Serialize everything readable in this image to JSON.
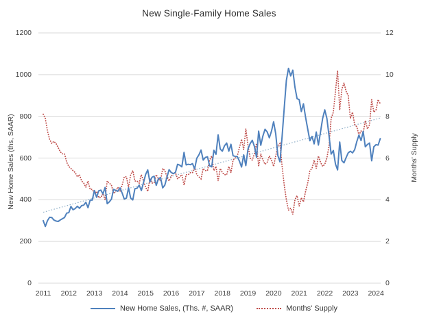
{
  "chart_data": {
    "type": "line",
    "title": "New Single-Family Home Sales",
    "ylabel_left": "New Home Sales (ths, SAAR)",
    "ylabel_right": "Months' Supply",
    "ylim_left": [
      0,
      1200
    ],
    "ylim_right": [
      0,
      12
    ],
    "left_axis_ticks": [
      "0",
      "200",
      "400",
      "600",
      "800",
      "1000",
      "1200"
    ],
    "right_axis_ticks": [
      "0",
      "2",
      "4",
      "6",
      "8",
      "10",
      "12"
    ],
    "x_ticks": [
      "2011",
      "2012",
      "2013",
      "2014",
      "2015",
      "2016",
      "2017",
      "2018",
      "2019",
      "2020",
      "2021",
      "2022",
      "2023",
      "2024"
    ],
    "x_frequency": "monthly",
    "x_start": "2011-01",
    "x_end": "2024-03",
    "grid": "horizontal",
    "legend_position": "bottom",
    "colors": {
      "gridline": "#d9d9d9",
      "trend": "#8fafc8",
      "text": "#3c3c3c"
    },
    "series": [
      {
        "name": "New Home Sales",
        "legend_label": "New Home Sales, (Ths. #, SAAR)",
        "axis": "left",
        "style": "solid",
        "color": "#4f81bd",
        "values": [
          300,
          272,
          300,
          316,
          315,
          303,
          298,
          296,
          303,
          309,
          315,
          336,
          338,
          368,
          352,
          358,
          369,
          359,
          372,
          374,
          388,
          362,
          398,
          398,
          444,
          412,
          443,
          446,
          428,
          459,
          381,
          390,
          403,
          450,
          445,
          441,
          457,
          432,
          403,
          408,
          457,
          408,
          399,
          453,
          455,
          470,
          444,
          482,
          521,
          543,
          485,
          508,
          513,
          469,
          500,
          507,
          457,
          470,
          508,
          544,
          531,
          525,
          531,
          570,
          566,
          558,
          627,
          567,
          570,
          568,
          573,
          548,
          599,
          615,
          638,
          590,
          603,
          606,
          563,
          558,
          637,
          618,
          711,
          643,
          633,
          659,
          672,
          633,
          666,
          611,
          608,
          607,
          585,
          557,
          615,
          564,
          644,
          669,
          685,
          656,
          604,
          729,
          661,
          706,
          738,
          725,
          697,
          729,
          774,
          716,
          612,
          582,
          704,
          840,
          972,
          1030,
          994,
          1021,
          940,
          885,
          880,
          823,
          860,
          796,
          740,
          683,
          704,
          668,
          725,
          662,
          725,
          790,
          831,
          790,
          707,
          619,
          636,
          571,
          543,
          677,
          588,
          577,
          602,
          625,
          633,
          625,
          640,
          679,
          710,
          684,
          728,
          654,
          665,
          672,
          587,
          654,
          664,
          662,
          693
        ]
      },
      {
        "name": "Months' Supply",
        "legend_label": "Months' Supply",
        "axis": "right",
        "style": "dotted",
        "color": "#c0504d",
        "values": [
          8.1,
          7.9,
          7.3,
          6.9,
          6.7,
          6.8,
          6.7,
          6.5,
          6.3,
          6.2,
          6.2,
          5.8,
          5.6,
          5.5,
          5.4,
          5.3,
          5.1,
          5.2,
          4.9,
          4.8,
          4.6,
          4.9,
          4.5,
          4.5,
          4.3,
          4.4,
          4.1,
          4.1,
          4.3,
          4.0,
          4.9,
          4.8,
          4.7,
          4.3,
          4.4,
          4.6,
          4.4,
          4.7,
          5.1,
          5.1,
          4.6,
          5.2,
          5.4,
          4.9,
          4.9,
          4.8,
          5.2,
          4.9,
          4.6,
          4.4,
          5.0,
          4.8,
          4.8,
          5.2,
          5.0,
          4.9,
          5.5,
          5.4,
          5.1,
          4.9,
          5.1,
          5.3,
          5.3,
          5.0,
          5.1,
          5.2,
          4.7,
          5.2,
          5.2,
          5.3,
          5.3,
          5.6,
          5.2,
          5.1,
          5.0,
          5.5,
          5.4,
          5.4,
          5.9,
          6.1,
          5.4,
          5.6,
          4.9,
          5.5,
          5.3,
          5.2,
          5.2,
          5.6,
          5.3,
          5.9,
          6.0,
          6.1,
          6.5,
          6.9,
          6.4,
          7.4,
          6.6,
          6.0,
          5.9,
          6.2,
          6.7,
          5.6,
          6.2,
          5.9,
          5.7,
          5.8,
          6.1,
          5.9,
          5.6,
          6.1,
          6.6,
          6.7,
          5.6,
          4.7,
          4.0,
          3.5,
          3.6,
          3.3,
          4.0,
          4.2,
          3.7,
          4.1,
          3.9,
          4.4,
          4.8,
          5.4,
          5.5,
          5.9,
          5.5,
          6.1,
          5.8,
          5.6,
          5.7,
          6.0,
          6.6,
          7.9,
          8.2,
          9.2,
          10.2,
          8.3,
          9.3,
          9.6,
          9.2,
          9.0,
          7.9,
          8.2,
          7.6,
          7.5,
          7.1,
          7.3,
          7.2,
          7.8,
          7.4,
          7.6,
          8.8,
          8.2,
          8.3,
          8.8,
          8.6
        ]
      }
    ],
    "trendline": {
      "series": "New Home Sales",
      "axis": "left",
      "start_value": 340,
      "end_value": 792
    }
  }
}
